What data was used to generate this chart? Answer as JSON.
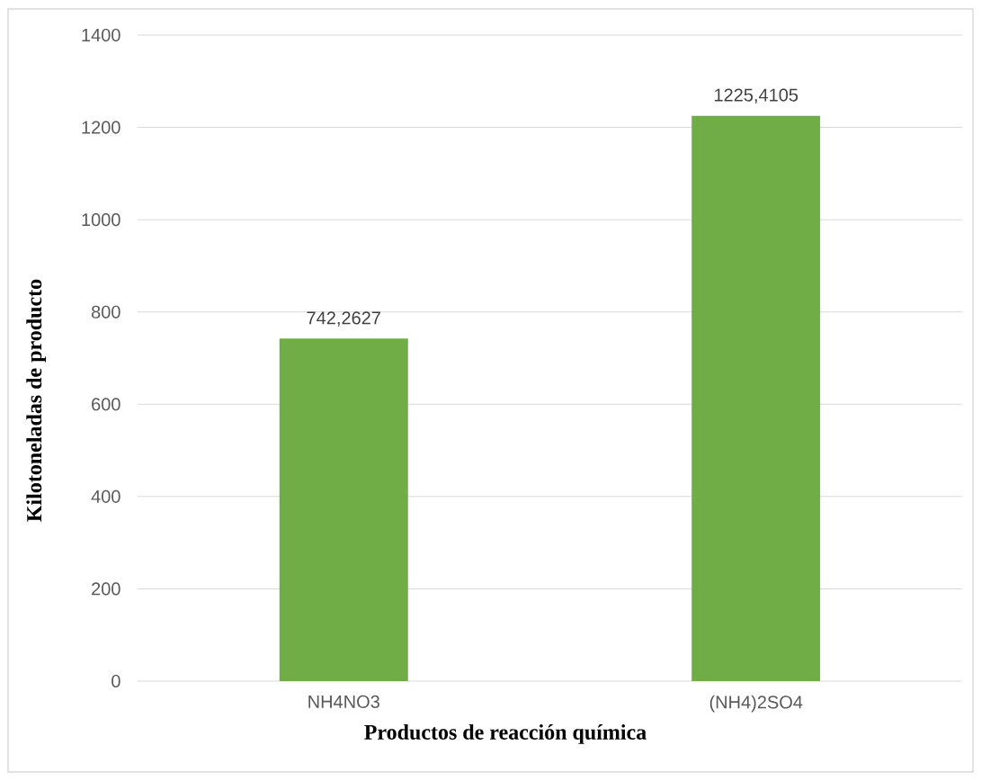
{
  "chart_data": {
    "type": "bar",
    "categories": [
      "NH4NO3",
      "(NH4)2SO4"
    ],
    "values": [
      742.2627,
      1225.4105
    ],
    "color": "#70ad47",
    "value_labels": [
      "742,2627",
      "1225,4105"
    ],
    "xlabel": "Productos de reacción química",
    "ylabel": "Kilotoneladas de producto",
    "ylim": [
      0,
      1400
    ],
    "yticks": [
      0,
      200,
      400,
      600,
      800,
      1000,
      1200,
      1400
    ],
    "grid": "y"
  }
}
